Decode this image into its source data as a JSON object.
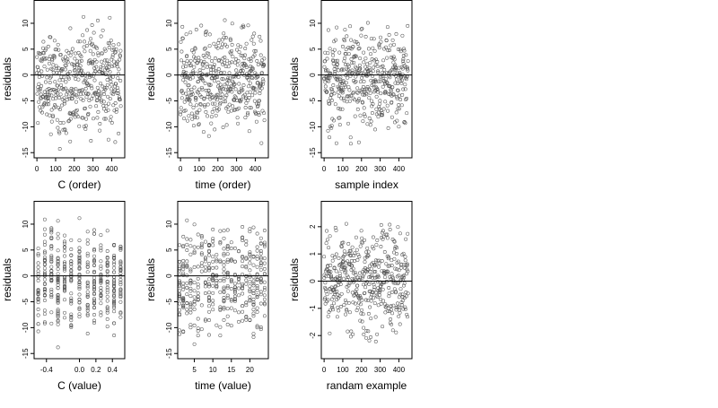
{
  "chart_data": [
    {
      "type": "scatter",
      "xlabel": "C (order)",
      "ylabel": "residuals",
      "xlim": [
        -15,
        470
      ],
      "ylim": [
        -16,
        14.5
      ],
      "xticks": [
        0,
        100,
        200,
        300,
        400
      ],
      "xtick_labels": [
        "0",
        "100",
        "200",
        "300",
        "400"
      ],
      "yticks": [
        -15,
        -10,
        -5,
        0,
        5,
        10
      ],
      "ytick_labels": [
        "-15",
        "-10",
        "-5",
        "0",
        "5",
        "10"
      ],
      "reference_line_y": 0,
      "n_points": 450,
      "point_distribution": "uniform",
      "y_range": [
        -15,
        13
      ],
      "seed": 11
    },
    {
      "type": "scatter",
      "xlabel": "time (order)",
      "ylabel": "residuals",
      "xlim": [
        -15,
        470
      ],
      "ylim": [
        -16,
        14.5
      ],
      "xticks": [
        0,
        100,
        200,
        300,
        400
      ],
      "xtick_labels": [
        "0",
        "100",
        "200",
        "300",
        "400"
      ],
      "yticks": [
        -15,
        -10,
        -5,
        0,
        5,
        10
      ],
      "ytick_labels": [
        "-15",
        "-10",
        "-5",
        "0",
        "5",
        "10"
      ],
      "reference_line_y": 0,
      "n_points": 450,
      "point_distribution": "uniform",
      "y_range": [
        -15,
        13
      ],
      "seed": 23
    },
    {
      "type": "scatter",
      "xlabel": "sample index",
      "ylabel": "residuals",
      "xlim": [
        -15,
        470
      ],
      "ylim": [
        -16,
        14.5
      ],
      "xticks": [
        0,
        100,
        200,
        300,
        400
      ],
      "xtick_labels": [
        "0",
        "100",
        "200",
        "300",
        "400"
      ],
      "yticks": [
        -15,
        -10,
        -5,
        0,
        5,
        10
      ],
      "ytick_labels": [
        "-15",
        "-10",
        "-5",
        "0",
        "5",
        "10"
      ],
      "reference_line_y": 0,
      "n_points": 450,
      "point_distribution": "uniform",
      "y_range": [
        -15,
        13
      ],
      "seed": 37
    },
    {
      "type": "scatter",
      "xlabel": "C (value)",
      "ylabel": "residuals",
      "xlim": [
        -0.55,
        0.55
      ],
      "ylim": [
        -16,
        14.5
      ],
      "xticks": [
        -0.4,
        0.0,
        0.2,
        0.4
      ],
      "xtick_labels": [
        "-0.4",
        "0.0",
        "0.2",
        "0.4"
      ],
      "yticks": [
        -15,
        -10,
        -5,
        0,
        5,
        10
      ],
      "ytick_labels": [
        "-15",
        "-10",
        "-5",
        "0",
        "5",
        "10"
      ],
      "reference_line_y": 0,
      "n_points": 420,
      "point_distribution": "columns",
      "x_columns": [
        -0.5,
        -0.42,
        -0.34,
        -0.26,
        -0.18,
        -0.1,
        0.0,
        0.1,
        0.18,
        0.26,
        0.34,
        0.42,
        0.5
      ],
      "y_range": [
        -15,
        13
      ],
      "seed": 41
    },
    {
      "type": "scatter",
      "xlabel": "time (value)",
      "ylabel": "residuals",
      "xlim": [
        0.5,
        25
      ],
      "ylim": [
        -16,
        14.5
      ],
      "xticks": [
        5,
        10,
        15,
        20
      ],
      "xtick_labels": [
        "5",
        "10",
        "15",
        "20"
      ],
      "yticks": [
        -15,
        -10,
        -5,
        0,
        5,
        10
      ],
      "ytick_labels": [
        "-15",
        "-10",
        "-5",
        "0",
        "5",
        "10"
      ],
      "reference_line_y": 0,
      "n_points": 420,
      "point_distribution": "columns",
      "x_columns": [
        1,
        2,
        3,
        4,
        5,
        6,
        7,
        8,
        9,
        10,
        11,
        12,
        13,
        14,
        15,
        16,
        17,
        18,
        19,
        20,
        21,
        22,
        23,
        24
      ],
      "y_range": [
        -15,
        13
      ],
      "seed": 53
    },
    {
      "type": "scatter",
      "xlabel": "randam example",
      "ylabel": "residuals",
      "xlim": [
        -15,
        470
      ],
      "ylim": [
        -2.85,
        2.95
      ],
      "xticks": [
        0,
        100,
        200,
        300,
        400
      ],
      "xtick_labels": [
        "0",
        "100",
        "200",
        "300",
        "400"
      ],
      "yticks": [
        -2,
        -1,
        0,
        1,
        2
      ],
      "ytick_labels": [
        "-2",
        "-1",
        "0",
        "1",
        "2"
      ],
      "reference_line_y": 0,
      "n_points": 450,
      "point_distribution": "uniform",
      "y_range": [
        -2.6,
        2.7
      ],
      "seed": 67
    }
  ]
}
